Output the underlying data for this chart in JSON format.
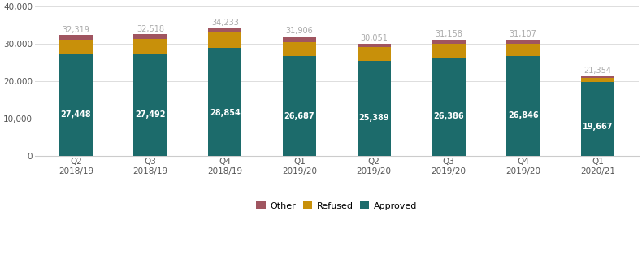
{
  "categories": [
    "Q2\n2018/19",
    "Q3\n2018/19",
    "Q4\n2018/19",
    "Q1\n2019/20",
    "Q2\n2019/20",
    "Q3\n2019/20",
    "Q4\n2019/20",
    "Q1\n2020/21"
  ],
  "approved": [
    27448,
    27492,
    28854,
    26687,
    25389,
    26386,
    26846,
    19667
  ],
  "refused": [
    3671,
    3826,
    4179,
    3819,
    3762,
    3572,
    3261,
    1187
  ],
  "totals": [
    32319,
    32518,
    34233,
    31906,
    30051,
    31158,
    31107,
    21354
  ],
  "color_approved": "#1c6b6b",
  "color_refused": "#c8900a",
  "color_other": "#a05560",
  "color_total_label": "#aaaaaa",
  "color_approved_label": "#ffffff",
  "bar_width": 0.45,
  "ylim": [
    0,
    40000
  ],
  "yticks": [
    0,
    10000,
    20000,
    30000,
    40000
  ],
  "background": "#ffffff",
  "grid_color": "#dddddd",
  "label_fontsize": 7.0,
  "tick_fontsize": 7.5
}
